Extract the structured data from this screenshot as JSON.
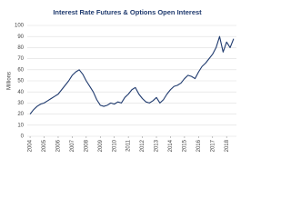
{
  "chart_data": {
    "type": "line",
    "title": "Interest Rate Futures & Options Open Interest",
    "y_label": "Millions",
    "x": [
      2004,
      2004.25,
      2004.5,
      2004.75,
      2005,
      2005.25,
      2005.5,
      2005.75,
      2006,
      2006.25,
      2006.5,
      2006.75,
      2007,
      2007.25,
      2007.5,
      2007.75,
      2008,
      2008.25,
      2008.5,
      2008.75,
      2009,
      2009.25,
      2009.5,
      2009.75,
      2010,
      2010.25,
      2010.5,
      2010.75,
      2011,
      2011.25,
      2011.5,
      2011.75,
      2012,
      2012.25,
      2012.5,
      2012.75,
      2013,
      2013.25,
      2013.5,
      2013.75,
      2014,
      2014.25,
      2014.5,
      2014.75,
      2015,
      2015.25,
      2015.5,
      2015.75,
      2016,
      2016.25,
      2016.5,
      2016.75,
      2017,
      2017.25,
      2017.5,
      2017.75,
      2018,
      2018.25,
      2018.5
    ],
    "values": [
      20,
      24,
      27,
      29,
      30,
      32,
      34,
      36,
      38,
      42,
      46,
      50,
      55,
      58,
      60,
      56,
      50,
      45,
      40,
      33,
      28,
      27,
      28,
      30,
      29,
      31,
      30,
      35,
      38,
      42,
      44,
      38,
      34,
      31,
      30,
      32,
      35,
      30,
      33,
      38,
      42,
      45,
      46,
      48,
      52,
      55,
      54,
      52,
      58,
      63,
      66,
      70,
      74,
      80,
      90,
      76,
      85,
      80,
      88
    ],
    "color": "#1f3a6e",
    "xlim": [
      2003.8,
      2018.7
    ],
    "xticks": [
      2004,
      2005,
      2006,
      2007,
      2008,
      2009,
      2010,
      2011,
      2012,
      2013,
      2014,
      2015,
      2016,
      2017,
      2018
    ],
    "ylim": [
      0,
      100
    ],
    "yticks": [
      0,
      10,
      20,
      30,
      40,
      50,
      60,
      70,
      80,
      90,
      100
    ],
    "grid": true
  }
}
